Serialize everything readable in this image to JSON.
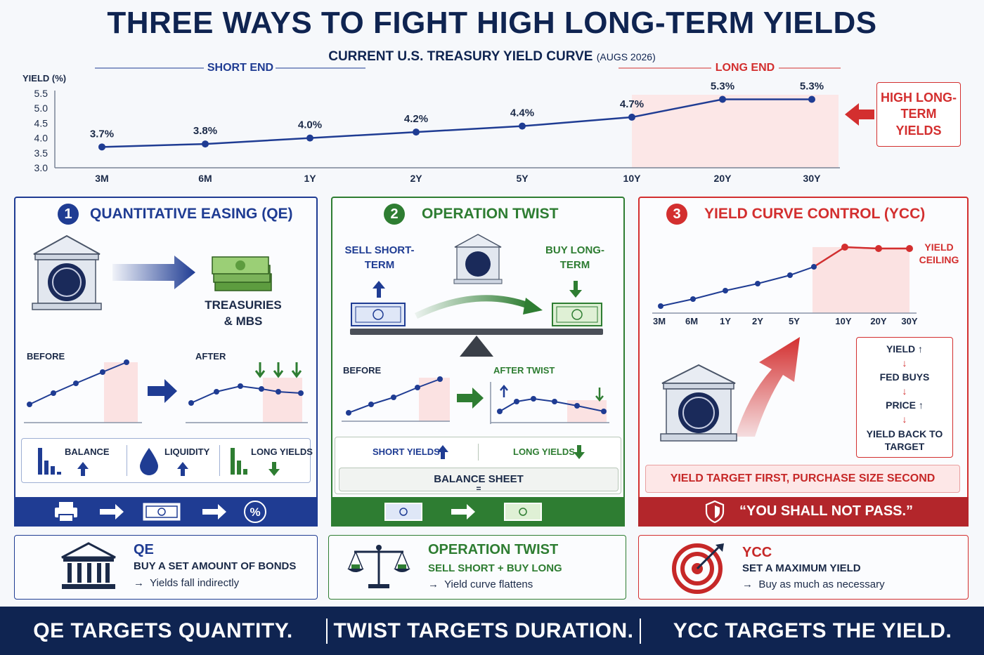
{
  "title": "THREE WAYS TO FIGHT HIGH LONG-TERM YIELDS",
  "subtitle": {
    "main": "CURRENT U.S. TREASURY YIELD CURVE",
    "note": "(AUGS 2026)"
  },
  "top_chart": {
    "short_end_label": "SHORT END",
    "long_end_label": "LONG END",
    "callout": "HIGH LONG-TERM YIELDS"
  },
  "chart_data": {
    "type": "line",
    "ylabel": "YIELD (%)",
    "ylim": [
      3.0,
      5.5
    ],
    "yticks": [
      "5.5",
      "5.0",
      "4.5",
      "4.0",
      "3.5",
      "3.0"
    ],
    "categories": [
      "3M",
      "6M",
      "1Y",
      "2Y",
      "5Y",
      "10Y",
      "20Y",
      "30Y"
    ],
    "values": [
      3.7,
      3.8,
      4.0,
      4.2,
      4.4,
      4.7,
      5.3,
      5.3
    ],
    "data_labels": [
      "3.7%",
      "3.8%",
      "4.0%",
      "4.2%",
      "4.4%",
      "4.7%",
      "5.3%",
      "5.3%"
    ],
    "line_color": "#1f3c93",
    "shaded_region": [
      "10Y",
      "30Y"
    ]
  },
  "qe": {
    "num": "1",
    "title": "QUANTITATIVE EASING (QE)",
    "asset_label": "TREASURIES & MBS",
    "before": "BEFORE",
    "after": "AFTER",
    "metrics": [
      "BALANCE",
      "LIQUIDITY",
      "LONG YIELDS"
    ]
  },
  "twist": {
    "num": "2",
    "title": "OPERATION TWIST",
    "sell": "SELL SHORT-TERM",
    "buy": "BUY LONG-TERM",
    "before": "BEFORE",
    "after": "AFTER TWIST",
    "short_yields": "SHORT YIELDS",
    "long_yields": "LONG YIELDS",
    "balance": "BALANCE SHEET",
    "equal": "="
  },
  "ycc": {
    "num": "3",
    "title": "YIELD CURVE CONTROL (YCC)",
    "ceiling": "YIELD CEILING",
    "ticks": [
      "3M",
      "6M",
      "1Y",
      "2Y",
      "5Y",
      "10Y",
      "20Y",
      "30Y"
    ],
    "steps": [
      "YIELD ↑",
      "FED BUYS",
      "PRICE ↑",
      "YIELD BACK TO TARGET"
    ],
    "target_note": "YIELD TARGET FIRST, PURCHASE SIZE SECOND",
    "quote": "“YOU SHALL NOT PASS.”"
  },
  "cards": {
    "qe": {
      "title": "QE",
      "line1": "BUY A SET AMOUNT OF BONDS",
      "line2": "Yields fall indirectly"
    },
    "twist": {
      "title": "OPERATION TWIST",
      "line1": "SELL SHORT + BUY LONG",
      "line2": "Yield curve flattens"
    },
    "ycc": {
      "title": "YCC",
      "line1": "SET A MAXIMUM YIELD",
      "line2": "Buy as much as necessary"
    }
  },
  "footer": [
    "QE TARGETS QUANTITY.",
    "TWIST TARGETS DURATION.",
    "YCC TARGETS THE YIELD."
  ],
  "colors": {
    "navy": "#0f2451",
    "blue": "#1f3c93",
    "green": "#2e7d32",
    "red": "#c62828"
  }
}
